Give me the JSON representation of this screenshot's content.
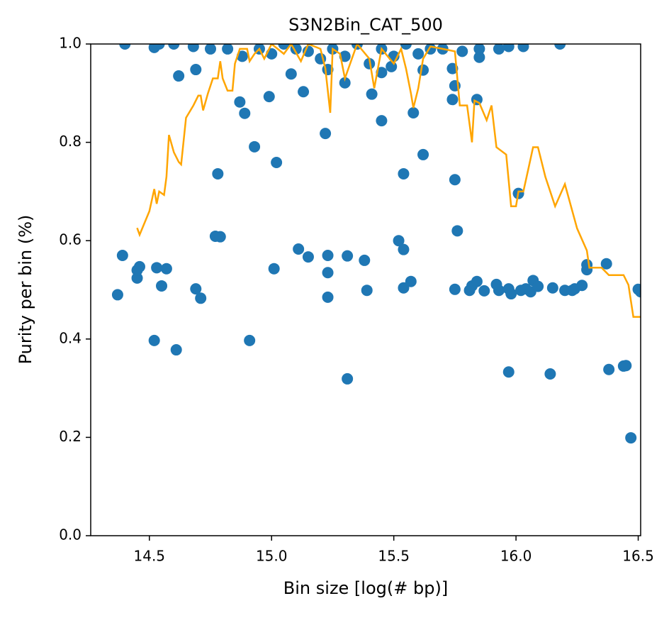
{
  "chart_data": {
    "type": "scatter",
    "title": "S3N2Bin_CAT_500",
    "xlabel": "Bin size [log(# bp)]",
    "ylabel": "Purity per bin (%)",
    "xlim": [
      14.26,
      16.51
    ],
    "ylim": [
      0,
      1
    ],
    "xticks": [
      14.5,
      {
        "value": 15,
        "label": "15.0"
      },
      15.5,
      {
        "value": 16,
        "label": "16.0"
      },
      16.5
    ],
    "yticks": [
      {
        "value": 0,
        "label": "0.0"
      },
      0.2,
      0.4,
      0.6,
      0.8,
      {
        "value": 1,
        "label": "1.0"
      }
    ],
    "series": [
      {
        "type": "scatter",
        "color": "#1f77b4",
        "x": [
          14.37,
          14.39,
          14.4,
          14.45,
          14.45,
          14.46,
          14.52,
          14.52,
          14.53,
          14.55,
          14.57,
          14.61,
          14.62,
          14.69,
          14.69,
          14.71,
          14.77,
          14.78,
          14.79,
          14.87,
          14.89,
          14.91,
          14.93,
          14.99,
          15.01,
          15.02,
          15.08,
          15.11,
          15.13,
          15.15,
          15.22,
          15.23,
          15.23,
          15.23,
          15.23,
          15.3,
          15.31,
          15.31,
          15.38,
          15.39,
          15.41,
          15.45,
          15.45,
          15.49,
          15.52,
          15.54,
          15.54,
          15.54,
          15.57,
          15.58,
          15.62,
          15.62,
          15.75,
          15.74,
          15.75,
          15.74,
          15.76,
          15.75,
          15.81,
          15.82,
          15.84,
          15.84,
          15.85,
          15.87,
          15.92,
          15.93,
          15.97,
          15.97,
          15.98,
          16.01,
          16.02,
          16.04,
          16.06,
          16.07,
          16.09,
          16.14,
          16.15,
          16.2,
          16.23,
          16.24,
          16.27,
          16.29,
          16.29,
          16.37,
          16.38,
          16.44,
          16.45,
          16.47,
          16.5,
          16.51,
          14.54,
          14.6,
          14.68,
          14.75,
          14.82,
          14.88,
          14.95,
          15.0,
          15.05,
          15.1,
          15.15,
          15.2,
          15.25,
          15.3,
          15.35,
          15.4,
          15.45,
          15.5,
          15.55,
          15.6,
          15.65,
          15.7,
          15.78,
          15.85,
          15.93,
          15.97,
          16.03,
          16.18
        ],
        "values": [
          0.49,
          0.57,
          1.0,
          0.524,
          0.54,
          0.547,
          0.397,
          0.993,
          0.545,
          0.508,
          0.543,
          0.378,
          0.935,
          0.502,
          0.948,
          0.483,
          0.609,
          0.736,
          0.608,
          0.882,
          0.859,
          0.397,
          0.791,
          0.893,
          0.543,
          0.759,
          0.939,
          0.583,
          0.903,
          0.567,
          0.818,
          0.57,
          0.535,
          0.485,
          0.948,
          0.921,
          0.319,
          0.569,
          0.56,
          0.499,
          0.898,
          0.844,
          0.942,
          0.954,
          0.6,
          0.736,
          0.582,
          0.504,
          0.517,
          0.86,
          0.775,
          0.947,
          0.724,
          0.95,
          0.915,
          0.887,
          0.62,
          0.501,
          0.499,
          0.508,
          0.887,
          0.517,
          0.973,
          0.498,
          0.511,
          0.499,
          0.333,
          0.502,
          0.492,
          0.696,
          0.499,
          0.502,
          0.496,
          0.519,
          0.507,
          0.329,
          0.504,
          0.499,
          0.499,
          0.502,
          0.509,
          0.551,
          0.541,
          0.553,
          0.338,
          0.345,
          0.346,
          0.199,
          0.501,
          0.496,
          1.0,
          1.0,
          0.995,
          0.99,
          0.99,
          0.975,
          0.99,
          0.98,
          1.0,
          0.99,
          0.985,
          0.97,
          0.99,
          0.975,
          1.0,
          0.96,
          0.99,
          0.975,
          1.0,
          0.98,
          0.99,
          0.99,
          0.985,
          0.99,
          0.99,
          0.995,
          0.995,
          1.0
        ]
      },
      {
        "type": "line",
        "color": "#ffa500",
        "x": [
          14.45,
          14.46,
          14.5,
          14.52,
          14.53,
          14.54,
          14.56,
          14.57,
          14.58,
          14.6,
          14.62,
          14.63,
          14.65,
          14.68,
          14.7,
          14.71,
          14.72,
          14.74,
          14.76,
          14.78,
          14.79,
          14.8,
          14.82,
          14.84,
          14.85,
          14.87,
          14.9,
          14.91,
          14.93,
          14.95,
          14.97,
          15.0,
          15.05,
          15.08,
          15.12,
          15.15,
          15.2,
          15.22,
          15.24,
          15.25,
          15.28,
          15.3,
          15.35,
          15.4,
          15.42,
          15.45,
          15.5,
          15.53,
          15.55,
          15.57,
          15.58,
          15.6,
          15.62,
          15.65,
          15.7,
          15.75,
          15.77,
          15.8,
          15.82,
          15.83,
          15.85,
          15.88,
          15.9,
          15.92,
          15.96,
          15.98,
          16.0,
          16.01,
          16.03,
          16.05,
          16.07,
          16.09,
          16.12,
          16.16,
          16.2,
          16.25,
          16.29,
          16.3,
          16.35,
          16.38,
          16.44,
          16.46,
          16.48,
          16.51
        ],
        "values": [
          0.626,
          0.612,
          0.66,
          0.705,
          0.675,
          0.7,
          0.693,
          0.73,
          0.815,
          0.78,
          0.76,
          0.755,
          0.85,
          0.875,
          0.895,
          0.895,
          0.865,
          0.9,
          0.93,
          0.93,
          0.965,
          0.93,
          0.905,
          0.905,
          0.96,
          0.99,
          0.99,
          0.965,
          0.98,
          0.99,
          0.97,
          1.0,
          0.98,
          1.0,
          0.965,
          1.0,
          0.99,
          0.95,
          0.86,
          0.99,
          0.98,
          0.93,
          1.0,
          0.97,
          0.91,
          0.99,
          0.96,
          0.99,
          0.95,
          0.9,
          0.87,
          0.91,
          0.97,
          0.995,
          0.99,
          0.985,
          0.875,
          0.875,
          0.8,
          0.885,
          0.88,
          0.845,
          0.875,
          0.79,
          0.775,
          0.67,
          0.67,
          0.7,
          0.7,
          0.745,
          0.79,
          0.79,
          0.73,
          0.67,
          0.715,
          0.625,
          0.58,
          0.545,
          0.545,
          0.53,
          0.53,
          0.51,
          0.445,
          0.445
        ]
      }
    ]
  }
}
